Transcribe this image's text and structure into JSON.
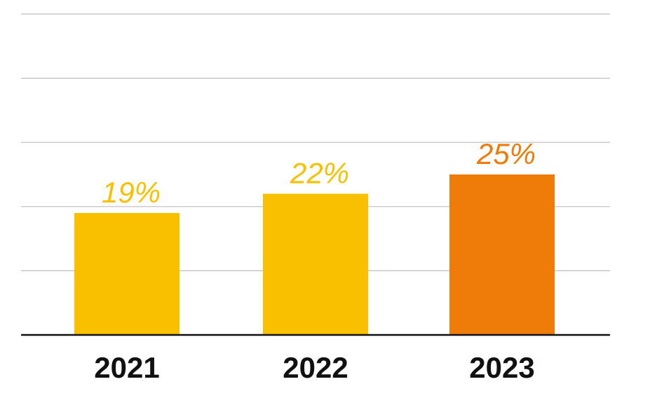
{
  "chart_data": {
    "type": "bar",
    "categories": [
      "2021",
      "2022",
      "2023"
    ],
    "values": [
      19,
      22,
      25
    ],
    "data_labels": [
      "19%",
      "22%",
      "25%"
    ],
    "title": "",
    "xlabel": "",
    "ylabel": "",
    "ylim": [
      0,
      50
    ],
    "grid": true,
    "legend": "none",
    "bar_colors": [
      "#F9C000",
      "#F9C000",
      "#EF7B08"
    ],
    "gridline_color": "#bdbdbd",
    "baseline_color": "#111111"
  }
}
